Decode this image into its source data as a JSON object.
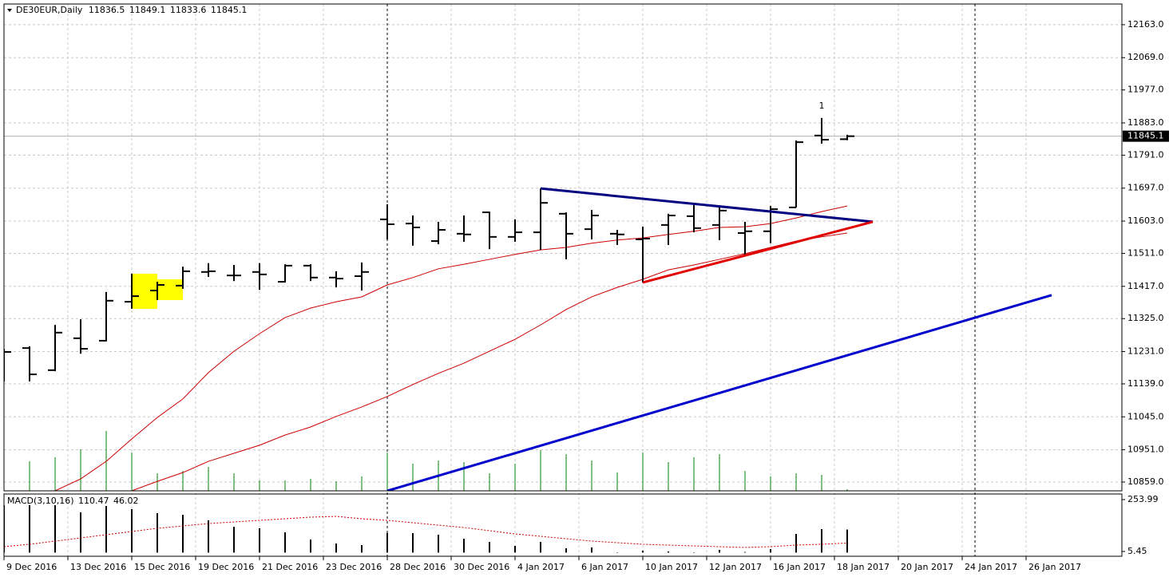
{
  "chart_data": [
    {
      "type": "ohlc",
      "title": "DE30EUR,Daily",
      "annotation": "1",
      "color": "#000000",
      "xlim": [
        0,
        43.75
      ],
      "xticks": [
        {
          "value": 0,
          "label": "9 Dec 2016"
        },
        {
          "value": 2.5,
          "label": "13 Dec 2016"
        },
        {
          "value": 5,
          "label": "15 Dec 2016"
        },
        {
          "value": 7.5,
          "label": "19 Dec 2016"
        },
        {
          "value": 10,
          "label": "21 Dec 2016"
        },
        {
          "value": 12.5,
          "label": "23 Dec 2016"
        },
        {
          "value": 15,
          "label": "28 Dec 2016"
        },
        {
          "value": 17.5,
          "label": "30 Dec 2016"
        },
        {
          "value": 20,
          "label": "4 Jan 2017"
        },
        {
          "value": 22.5,
          "label": "6 Jan 2017"
        },
        {
          "value": 25,
          "label": "10 Jan 2017"
        },
        {
          "value": 27.5,
          "label": "12 Jan 2017"
        },
        {
          "value": 30,
          "label": "16 Jan 2017"
        },
        {
          "value": 32.5,
          "label": "18 Jan 2017"
        },
        {
          "value": 35,
          "label": "20 Jan 2017"
        },
        {
          "value": 37.5,
          "label": "24 Jan 2017"
        },
        {
          "value": 40,
          "label": "26 Jan 2017"
        }
      ],
      "ylim": [
        10834,
        12222
      ],
      "yticks": [
        {
          "value": 12163,
          "label": "12163.0"
        },
        {
          "value": 12069,
          "label": "12069.0"
        },
        {
          "value": 11977,
          "label": "11977.0"
        },
        {
          "value": 11883,
          "label": "11883.0"
        },
        {
          "value": 11791,
          "label": "11791.0"
        },
        {
          "value": 11697,
          "label": "11697.0"
        },
        {
          "value": 11603,
          "label": "11603.0"
        },
        {
          "value": 11511,
          "label": "11511.0"
        },
        {
          "value": 11417,
          "label": "11417.0"
        },
        {
          "value": 11325,
          "label": "11325.0"
        },
        {
          "value": 11231,
          "label": "11231.0"
        },
        {
          "value": 11139,
          "label": "11139.0"
        },
        {
          "value": 11045,
          "label": "11045.0"
        },
        {
          "value": 10951,
          "label": "10951.0"
        },
        {
          "value": 10859,
          "label": "10859.0"
        }
      ],
      "grid": true,
      "open": [
        11239,
        11241,
        11178,
        11269,
        11262,
        11373,
        11405,
        11419,
        11458,
        11448,
        11458,
        11430,
        11476,
        11442,
        11446,
        11608,
        11596,
        11546,
        11567,
        11628,
        11558,
        11571,
        11624,
        11580,
        11567,
        11551,
        11592,
        11617,
        11592,
        11569,
        11574,
        11642,
        11847,
        11836.5
      ],
      "high": [
        11239,
        11246,
        11307,
        11323,
        11401,
        11453,
        11430,
        11473,
        11483,
        11478,
        11483,
        11480,
        11480,
        11460,
        11485,
        11651,
        11619,
        11601,
        11619,
        11630,
        11608,
        11696,
        11628,
        11635,
        11578,
        11587,
        11624,
        11649,
        11644,
        11601,
        11646,
        11833,
        11897,
        11849.1
      ],
      "low": [
        11146,
        11146,
        11175,
        11225,
        11260,
        11353,
        11378,
        11410,
        11444,
        11432,
        11407,
        11428,
        11432,
        11414,
        11405,
        11551,
        11533,
        11537,
        11544,
        11523,
        11544,
        11521,
        11494,
        11551,
        11535,
        11428,
        11535,
        11571,
        11549,
        11505,
        11540,
        11642,
        11824,
        11833.6
      ],
      "close": [
        11230,
        11166,
        11285,
        11239,
        11376,
        11389,
        11421,
        11460,
        11460,
        11448,
        11451,
        11476,
        11442,
        11439,
        11458,
        11594,
        11585,
        11578,
        11565,
        11558,
        11571,
        11655,
        11567,
        11619,
        11565,
        11553,
        11619,
        11583,
        11633,
        11574,
        11637,
        11828,
        11835,
        11845.1
      ],
      "lines": [
        {
          "color": "#cc0000",
          "values": [
            null,
            null,
            10834,
            10868,
            10918,
            10982,
            11043,
            11096,
            11171,
            11232,
            11282,
            11328,
            11355,
            11373,
            11387,
            11421,
            11442,
            11467,
            11480,
            11494,
            11508,
            11521,
            11528,
            11540,
            11549,
            11555,
            11565,
            11574,
            11585,
            11587,
            11596,
            11612,
            11630,
            11646
          ]
        },
        {
          "color": "#cc0000",
          "values": [
            null,
            null,
            null,
            null,
            null,
            10834,
            10861,
            10886,
            10918,
            10941,
            10964,
            10993,
            11016,
            11046,
            11073,
            11103,
            11137,
            11169,
            11198,
            11232,
            11266,
            11307,
            11351,
            11387,
            11414,
            11437,
            11464,
            11478,
            11494,
            11510,
            11528,
            11546,
            11558,
            11569
          ]
        }
      ],
      "volume": {
        "color": "#008000",
        "values": [
          35,
          37,
          42,
          52,
          75,
          48,
          22,
          25,
          30,
          22,
          13,
          13,
          15,
          12,
          18,
          48,
          34,
          38,
          36,
          22,
          34,
          51,
          46,
          38,
          23,
          48,
          36,
          42,
          46,
          25,
          18,
          22,
          20,
          2
        ]
      },
      "trendlines": [
        {
          "color": "#0000cc",
          "x": [
            15,
            41
          ],
          "y": [
            10834,
            11392
          ]
        },
        {
          "color": "#000080",
          "x": [
            21,
            34
          ],
          "y": [
            11696,
            11601
          ]
        },
        {
          "color": "#e00000",
          "x": [
            25,
            34
          ],
          "y": [
            11428,
            11601
          ]
        }
      ]
    },
    {
      "type": "macd",
      "title": "MACD(3,10,16)",
      "ylim": [
        -17.5,
        280.7
      ],
      "yticks": [
        253.99,
        5.45
      ],
      "histogram": {
        "color": "#000000",
        "values": [
          227.2,
          227.2,
          227.2,
          192.8,
          223.3,
          208.0,
          188.9,
          181.3,
          154.5,
          124.0,
          116.3,
          97.2,
          62.8,
          43.7,
          36.0,
          93.4,
          93.4,
          85.7,
          66.6,
          51.3,
          32.2,
          51.3,
          20.7,
          24.6,
          1.6,
          9.3,
          5.45,
          1.6,
          13.1,
          3.0,
          16.9,
          89.5,
          112.5,
          110.47
        ]
      },
      "signal": {
        "color": "#cc0000",
        "values": [
          28.4,
          39.9,
          55.1,
          70.4,
          85.7,
          101.0,
          116.3,
          127.8,
          139.2,
          146.9,
          154.5,
          162.2,
          169.8,
          173.6,
          162.2,
          154.5,
          143.1,
          131.6,
          120.1,
          104.8,
          89.5,
          78.1,
          66.6,
          55.1,
          47.5,
          39.9,
          36.0,
          32.2,
          28.4,
          24.6,
          28.4,
          36.0,
          39.9,
          46.02
        ]
      }
    }
  ]
}
